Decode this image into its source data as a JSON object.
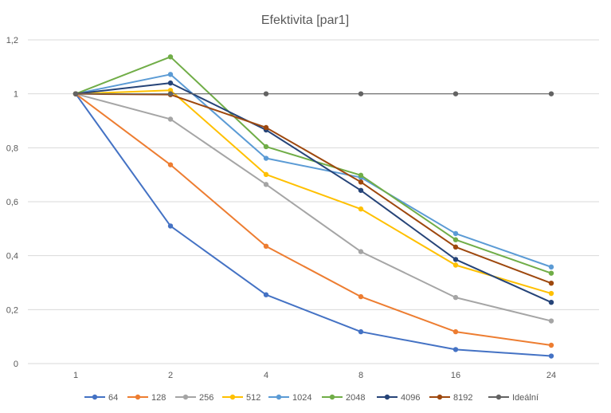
{
  "chart_data": {
    "type": "line",
    "title": "Efektivita  [par1]",
    "xlabel": "",
    "ylabel": "",
    "categories": [
      "1",
      "2",
      "4",
      "8",
      "16",
      "24"
    ],
    "yticks": [
      "0",
      "0,2",
      "0,4",
      "0,6",
      "0,8",
      "1",
      "1,2"
    ],
    "ylim": [
      0,
      1.2
    ],
    "grid": "horizontal",
    "legend_position": "bottom",
    "series": [
      {
        "name": "64",
        "color": "#4472c4",
        "values": [
          1,
          0.51,
          0.255,
          0.118,
          0.052,
          0.028
        ]
      },
      {
        "name": "128",
        "color": "#ed7d31",
        "values": [
          1,
          0.737,
          0.435,
          0.248,
          0.118,
          0.068
        ]
      },
      {
        "name": "256",
        "color": "#a5a5a5",
        "values": [
          1,
          0.906,
          0.664,
          0.415,
          0.245,
          0.158
        ]
      },
      {
        "name": "512",
        "color": "#ffc000",
        "values": [
          1,
          1.013,
          0.701,
          0.573,
          0.365,
          0.26
        ]
      },
      {
        "name": "1024",
        "color": "#5b9bd5",
        "values": [
          1,
          1.072,
          0.761,
          0.69,
          0.482,
          0.358
        ]
      },
      {
        "name": "2048",
        "color": "#70ad47",
        "values": [
          1,
          1.137,
          0.804,
          0.698,
          0.459,
          0.335
        ]
      },
      {
        "name": "4096",
        "color": "#264478",
        "values": [
          1,
          1.04,
          0.866,
          0.642,
          0.386,
          0.227
        ]
      },
      {
        "name": "8192",
        "color": "#9e480e",
        "values": [
          1,
          0.997,
          0.875,
          0.673,
          0.432,
          0.298
        ]
      },
      {
        "name": "Ideální",
        "color": "#636363",
        "values": [
          1,
          1,
          1,
          1,
          1,
          1
        ]
      }
    ]
  }
}
